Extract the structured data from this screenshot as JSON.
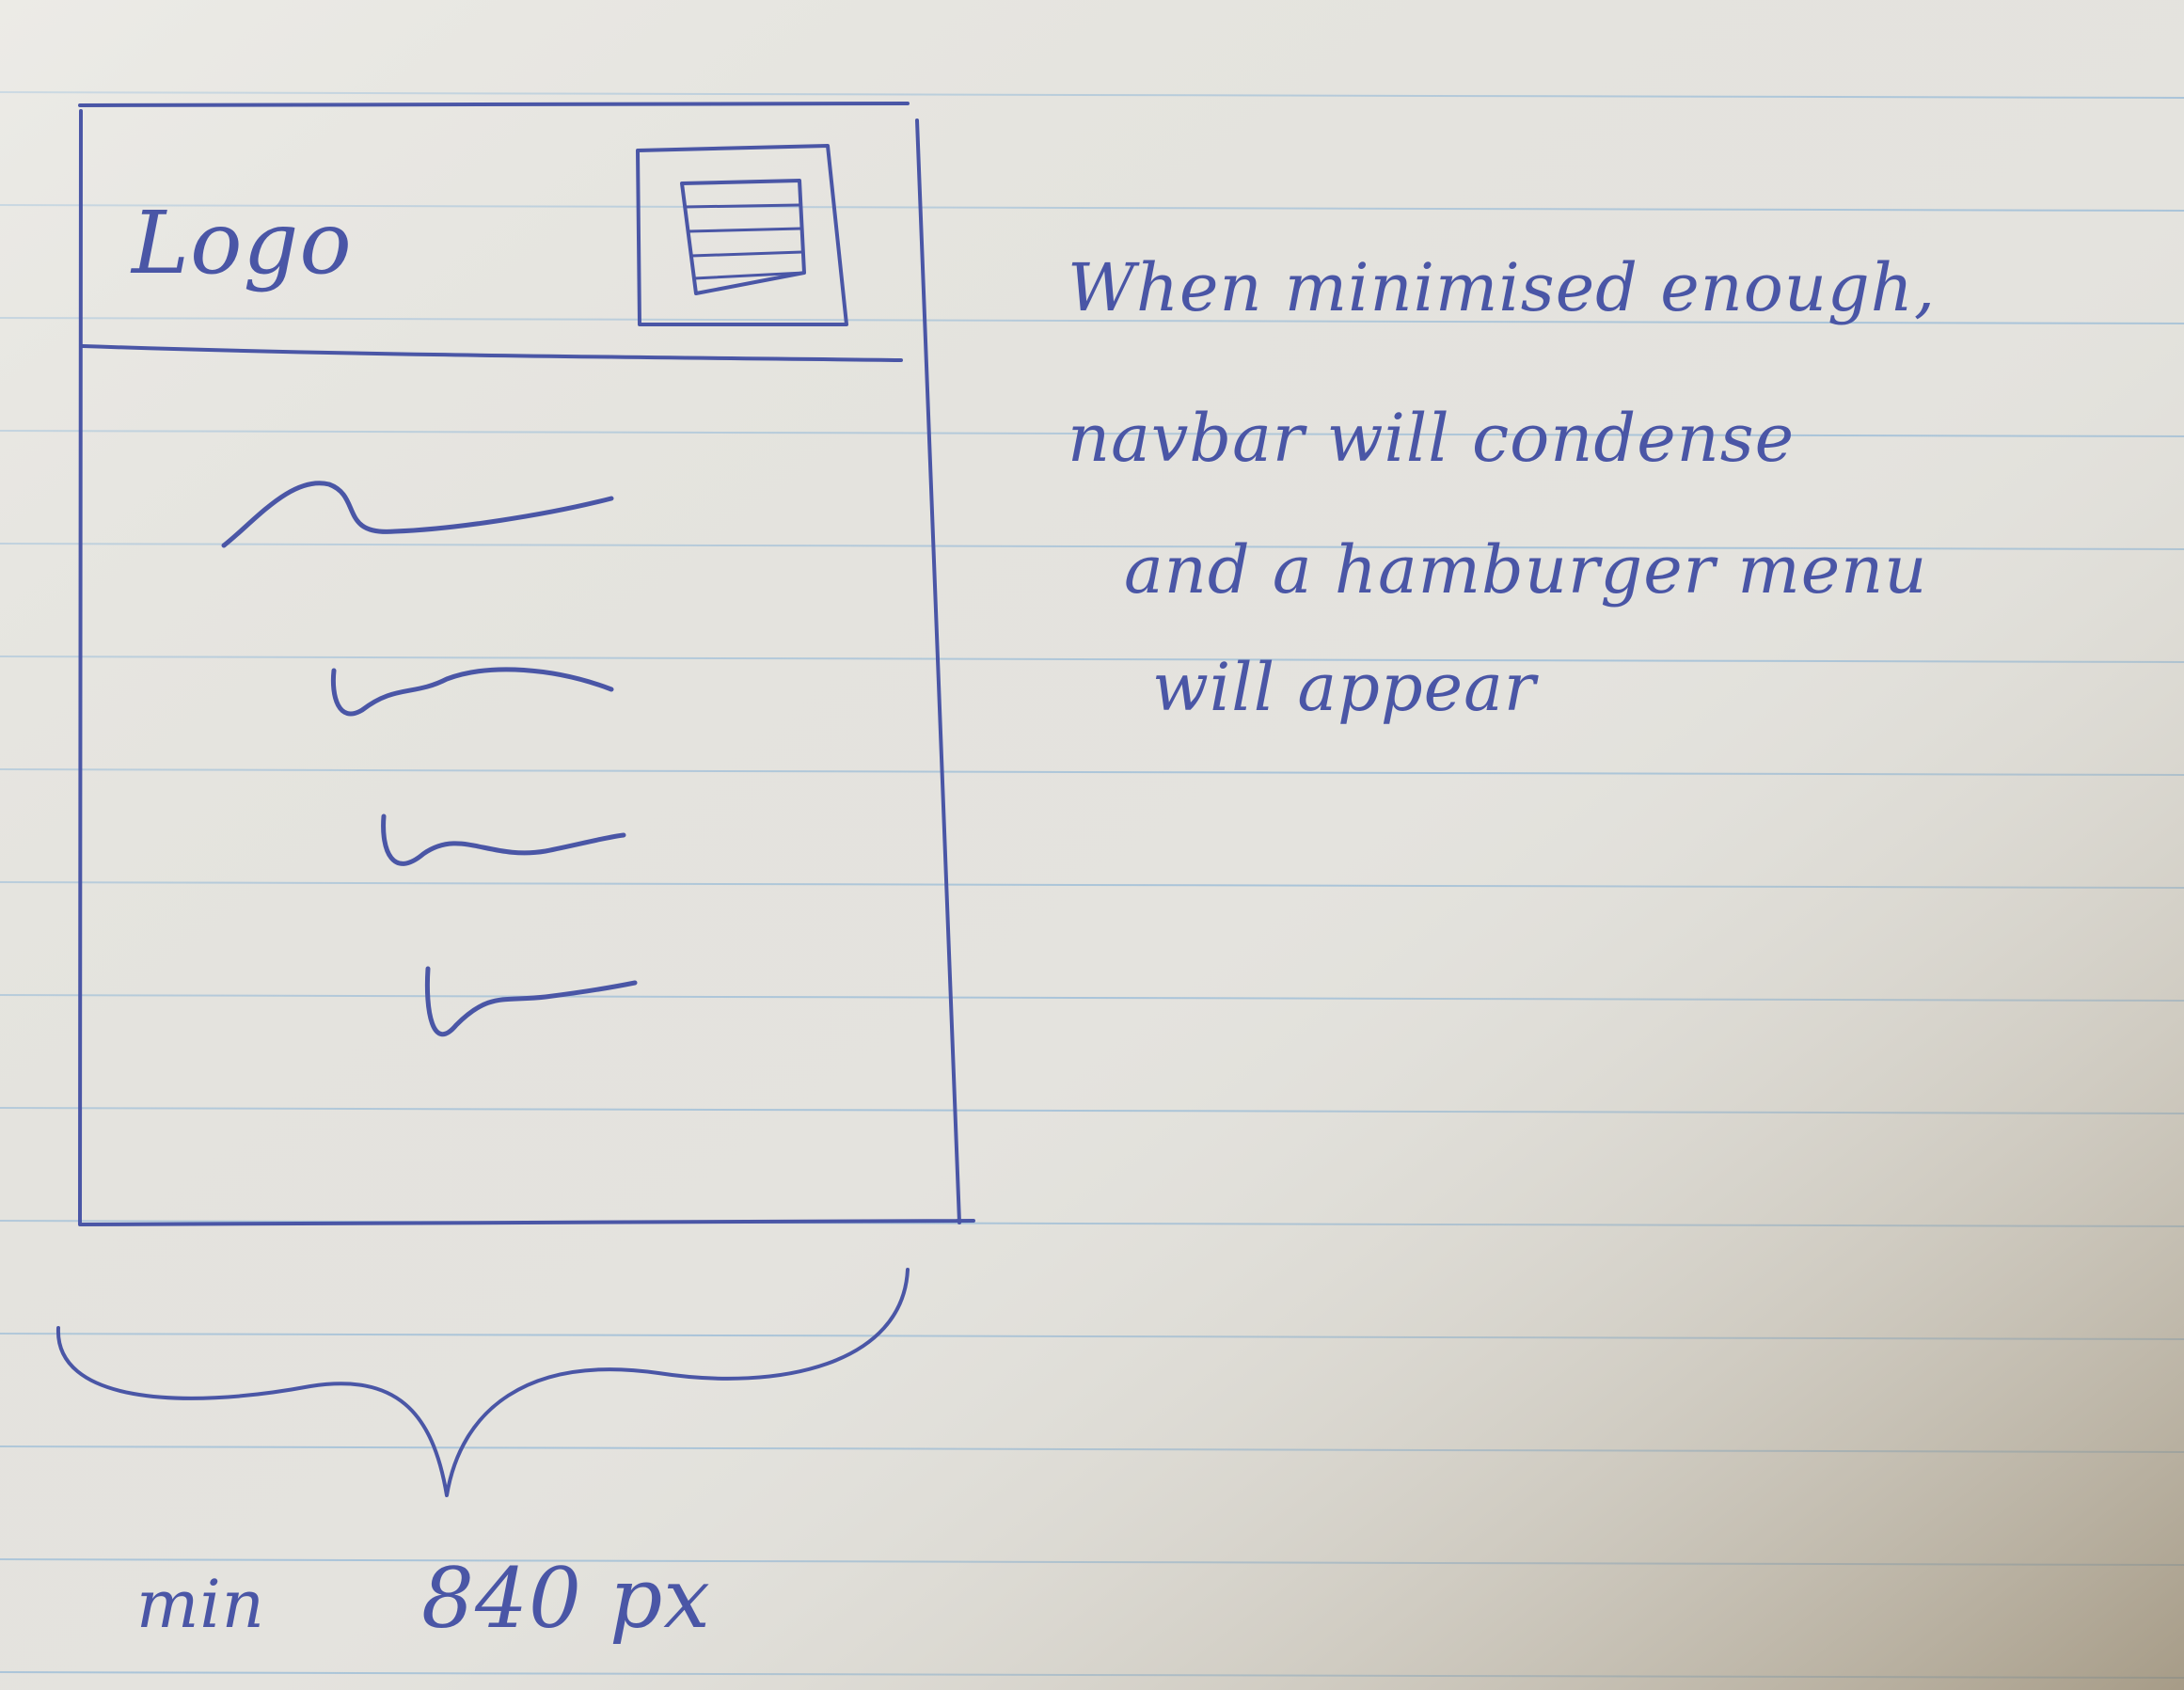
{
  "sketch": {
    "logo": "Logo",
    "note": [
      "When minimised enough,",
      "navbar will condense",
      "and a hamburger menu",
      "will appear"
    ],
    "min_width": {
      "prefix": "min",
      "value": "840 px"
    }
  },
  "colors": {
    "paper": "#e4e3de",
    "ruled_line": "#a9c4d9",
    "ink": "#4a56a6"
  },
  "icons": {
    "menu": "hamburger-menu-icon"
  }
}
